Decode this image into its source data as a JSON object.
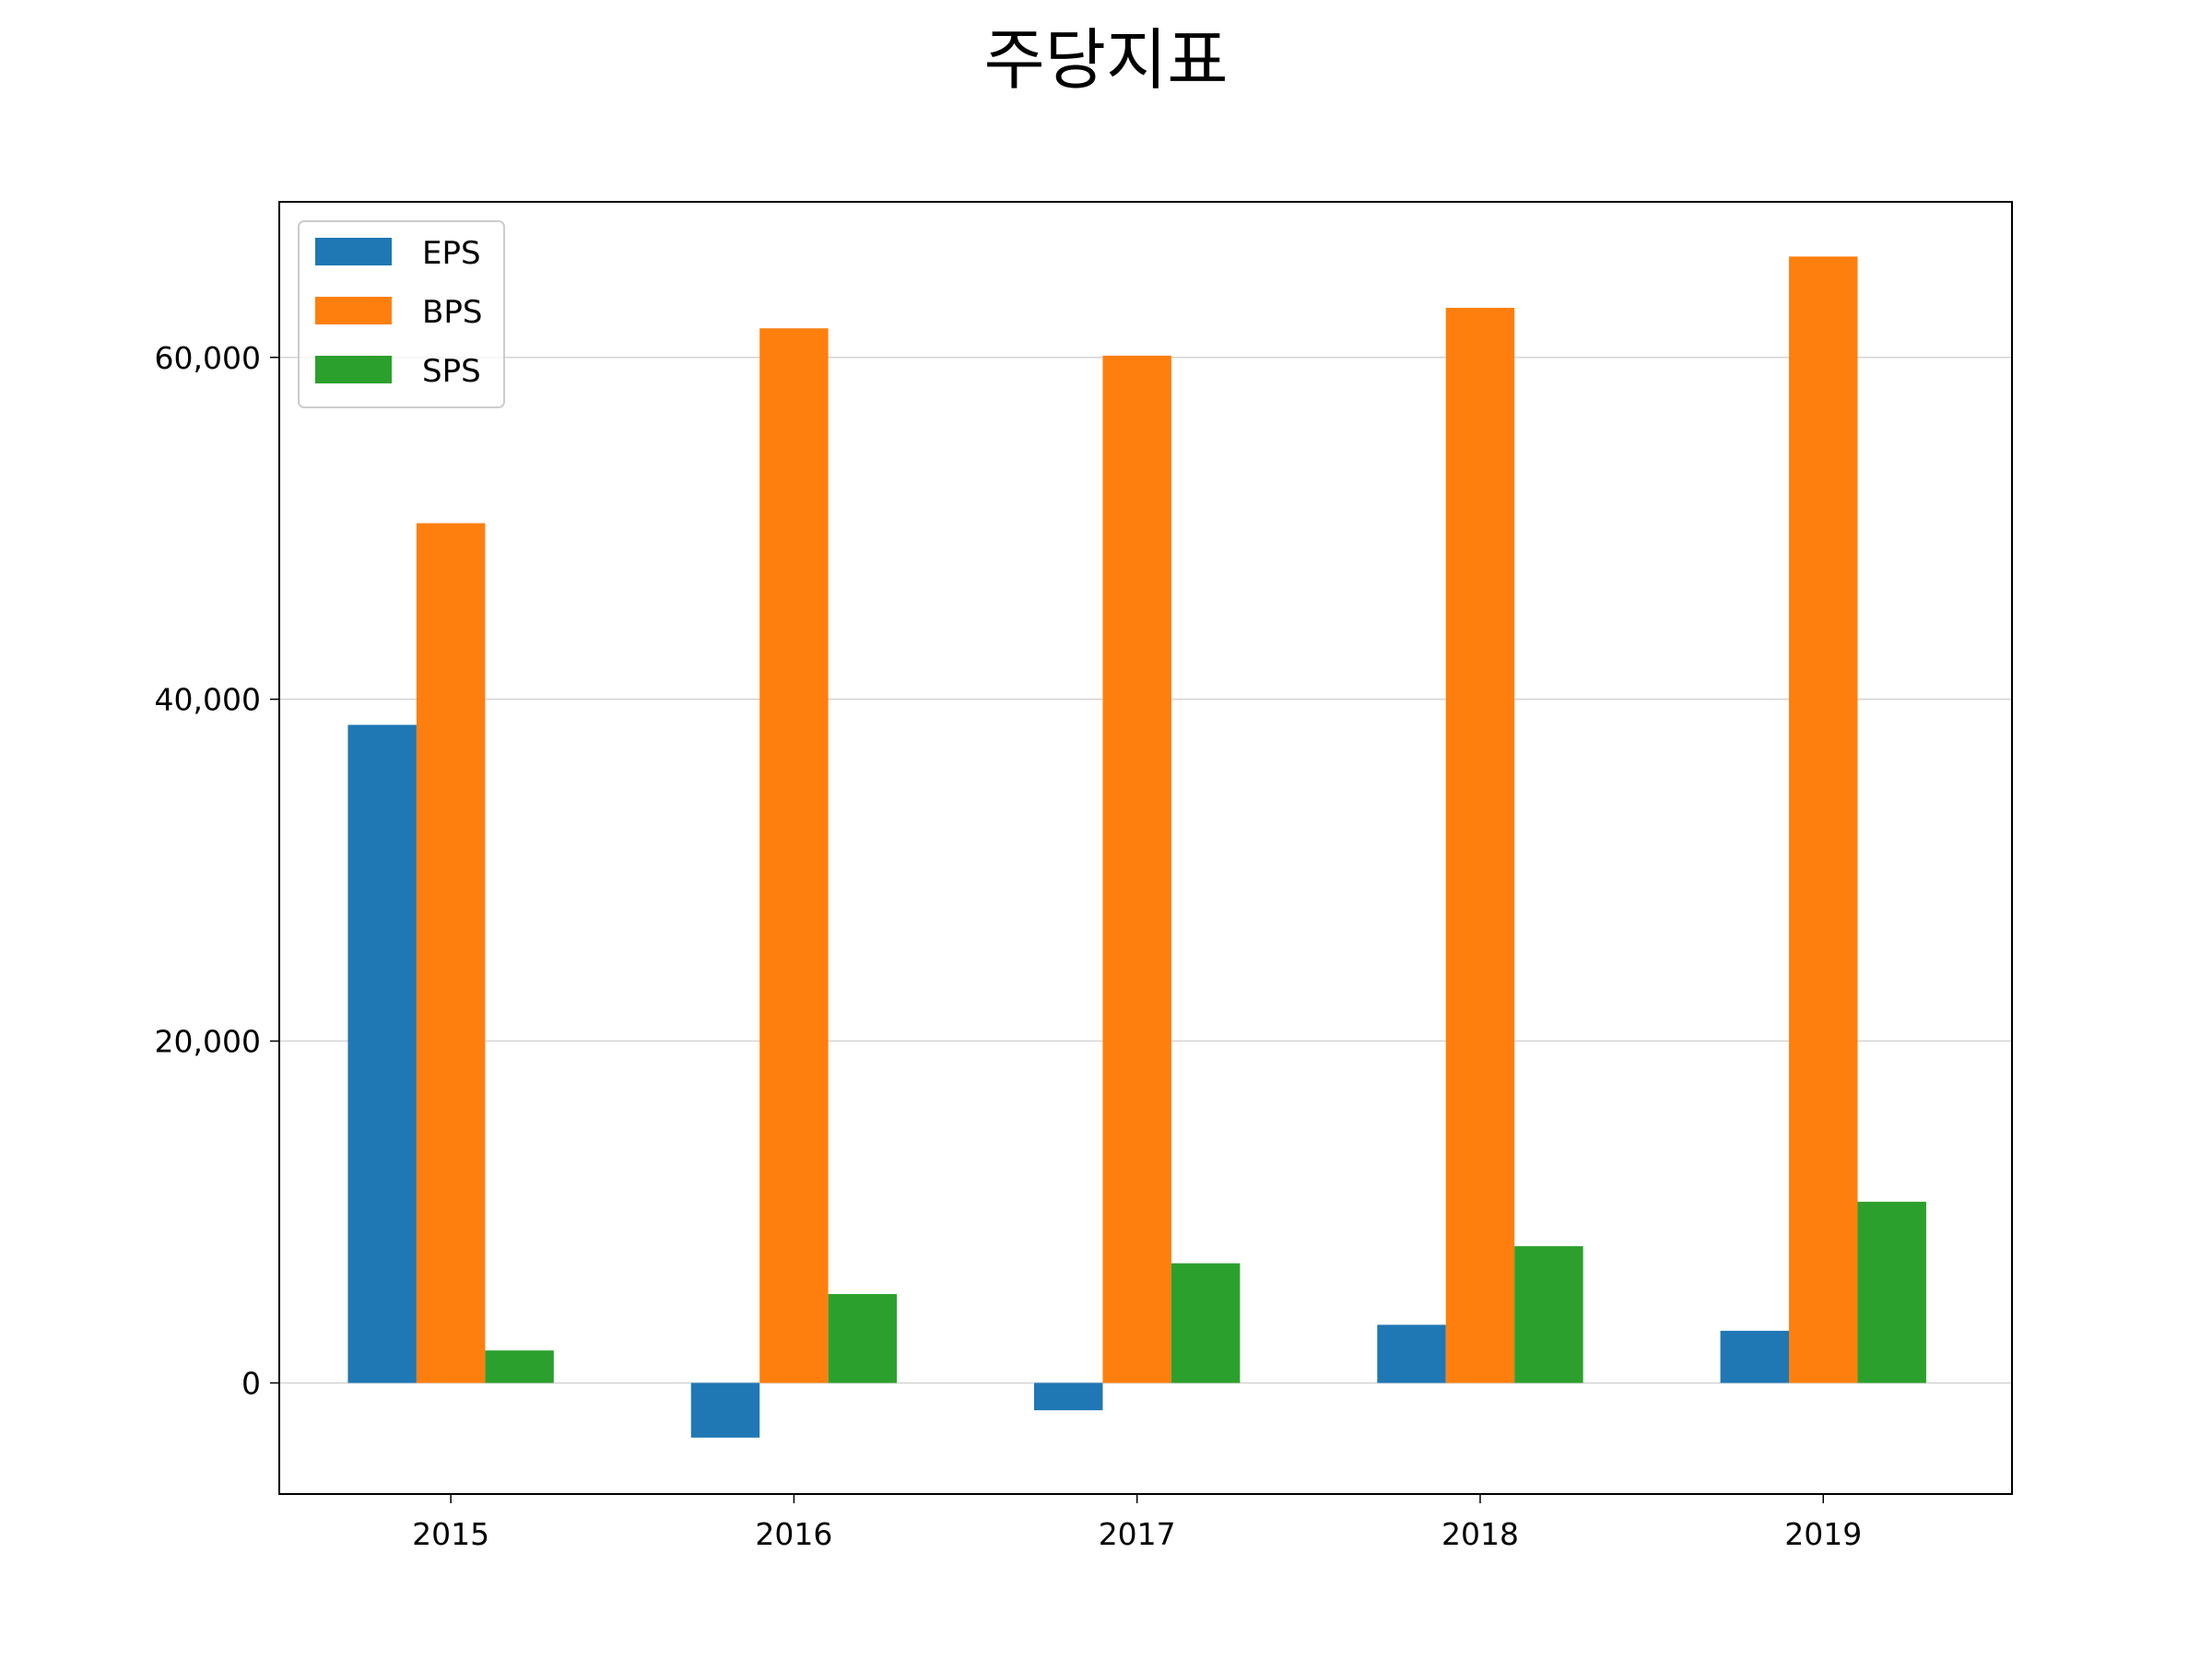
{
  "chart_data": {
    "type": "bar",
    "title": "주당지표",
    "xlabel": "",
    "ylabel": "",
    "categories": [
      "2015",
      "2016",
      "2017",
      "2018",
      "2019"
    ],
    "series": [
      {
        "name": "EPS",
        "color": "#1f77b4",
        "values": [
          38500,
          -3200,
          -1600,
          3400,
          3050
        ]
      },
      {
        "name": "BPS",
        "color": "#ff7f0e",
        "values": [
          50300,
          61700,
          60100,
          62900,
          65900
        ]
      },
      {
        "name": "SPS",
        "color": "#2ca02c",
        "values": [
          1900,
          5200,
          7000,
          8000,
          10600
        ]
      }
    ],
    "ylim": [
      -6500,
      69100
    ],
    "yticks": [
      0,
      20000,
      40000,
      60000
    ],
    "ytick_labels": [
      "0",
      "20,000",
      "40,000",
      "60,000"
    ],
    "grid": true,
    "legend_position": "upper-left"
  }
}
